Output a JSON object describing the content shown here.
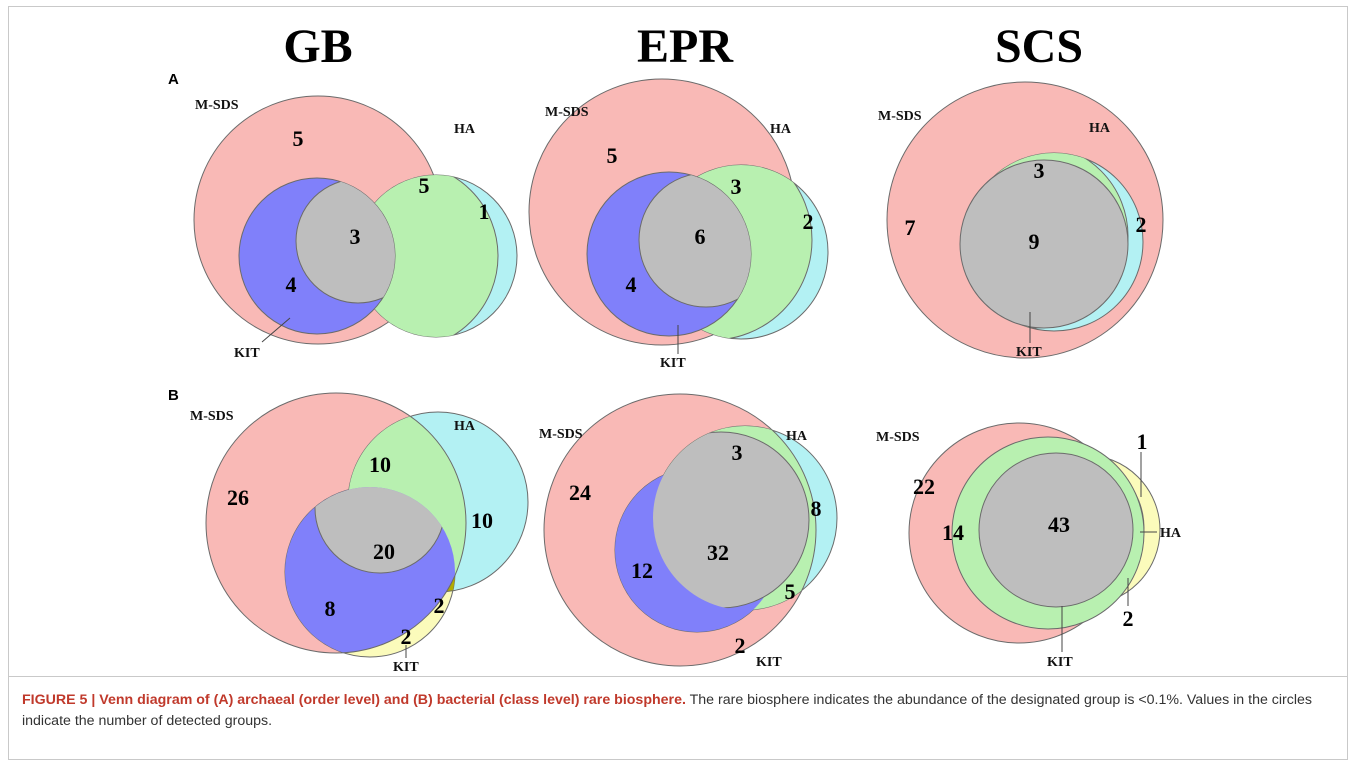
{
  "columns": [
    "GB",
    "EPR",
    "SCS"
  ],
  "panels": [
    "A",
    "B"
  ],
  "set_labels": {
    "m_sds": "M-SDS",
    "ha": "HA",
    "kit": "KIT"
  },
  "diagrams": {
    "A_GB": {
      "m_sds_only": "5",
      "ha_m_sds": "5",
      "ha_only": "1",
      "core": "3",
      "kit_m_sds": "4"
    },
    "A_EPR": {
      "m_sds_only": "5",
      "ha_m_sds": "3",
      "ha_only": "2",
      "core": "6",
      "kit_m_sds": "4"
    },
    "A_SCS": {
      "m_sds_only": "7",
      "ha_m_sds": "3",
      "ha_only": "2",
      "core": "9"
    },
    "B_GB": {
      "m_sds_only": "26",
      "ha_m_sds": "10",
      "ha_only": "10",
      "core": "20",
      "kit_m_sds": "8",
      "kit_ha": "2",
      "kit_only": "2"
    },
    "B_EPR": {
      "m_sds_only": "24",
      "ha_m_sds": "3",
      "ha_only": "8",
      "core": "32",
      "kit_m_sds": "12",
      "kit_ha": "5",
      "kit_only": "2"
    },
    "B_SCS": {
      "m_sds_only": "22",
      "ha_m_sds": "14",
      "core": "43",
      "top": "1",
      "bottom": "2"
    }
  },
  "colors": {
    "m_sds": "#f9b9b6",
    "ha": "#b3f1f3",
    "green": "#b8f0b0",
    "kit": "#8080fa",
    "core": "#bebebe",
    "kit_ha": "#b3ad00",
    "kit_only": "#fbfbbb"
  },
  "caption": {
    "bold": "FIGURE 5 | Venn diagram of (A) archaeal (order level) and (B) bacterial (class level) rare biosphere.",
    "text": " The rare biosphere indicates the abundance of the designated group is <0.1%. Values in the circles indicate the number of detected groups."
  }
}
